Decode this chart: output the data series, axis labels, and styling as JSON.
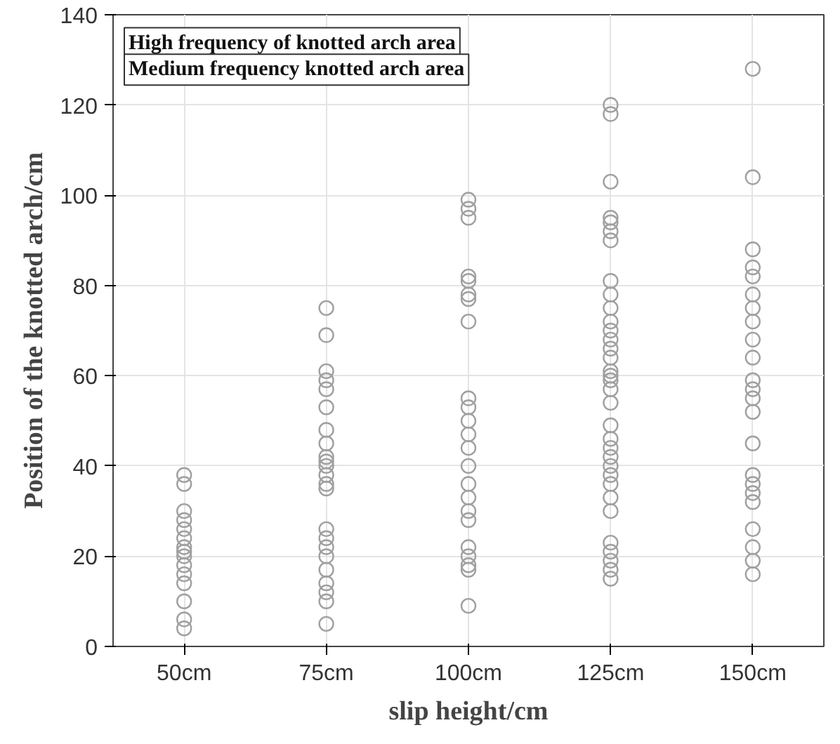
{
  "chart_data": {
    "type": "scatter",
    "xlabel": "slip height/cm",
    "ylabel": "Position of the knotted arch/cm",
    "categories": [
      "50cm",
      "75cm",
      "100cm",
      "125cm",
      "150cm"
    ],
    "ylim": [
      0,
      140
    ],
    "yticks": [
      0,
      20,
      40,
      60,
      80,
      100,
      120,
      140
    ],
    "grid": true,
    "marker": "circle",
    "annotations": [
      "High frequency of knotted arch area",
      "Medium frequency knotted arch area"
    ],
    "series": [
      {
        "color": "#a0a0a0",
        "values": [
          38,
          75,
          99,
          120,
          128
        ]
      },
      {
        "color": "#a0a0a0",
        "values": [
          36,
          69,
          97,
          118,
          104
        ]
      },
      {
        "color": "#a0a0a0",
        "values": [
          30,
          61,
          95,
          103,
          88
        ]
      },
      {
        "color": "#a0a0a0",
        "values": [
          28,
          59,
          82,
          95,
          84
        ]
      },
      {
        "color": "#a0a0a0",
        "values": [
          26,
          57,
          81,
          94,
          82
        ]
      },
      {
        "color": "#a0a0a0",
        "values": [
          24,
          53,
          78,
          92,
          78
        ]
      },
      {
        "color": "#a0a0a0",
        "values": [
          22,
          48,
          77,
          90,
          75
        ]
      },
      {
        "color": "#a0a0a0",
        "values": [
          21,
          45,
          72,
          81,
          72
        ]
      },
      {
        "color": "#a0a0a0",
        "values": [
          20,
          42,
          55,
          78,
          68
        ]
      },
      {
        "color": "#a0a0a0",
        "values": [
          18,
          41,
          53,
          75,
          64
        ]
      },
      {
        "color": "#a0a0a0",
        "values": [
          16,
          40,
          50,
          72,
          59
        ]
      },
      {
        "color": "#a0a0a0",
        "values": [
          14,
          38,
          47,
          70,
          57
        ]
      },
      {
        "color": "#a0a0a0",
        "values": [
          10,
          36,
          44,
          68,
          55
        ]
      },
      {
        "color": "#a0a0a0",
        "values": [
          6,
          35,
          40,
          66,
          52
        ]
      },
      {
        "color": "#a0a0a0",
        "values": [
          4,
          26,
          36,
          64,
          45
        ]
      },
      {
        "color": "#a0a0a0",
        "values": [
          null,
          24,
          33,
          61,
          38
        ]
      },
      {
        "color": "#a0a0a0",
        "values": [
          null,
          22,
          30,
          60,
          36
        ]
      },
      {
        "color": "#a0a0a0",
        "values": [
          null,
          20,
          28,
          59,
          34
        ]
      },
      {
        "color": "#a0a0a0",
        "values": [
          null,
          17,
          22,
          57,
          32
        ]
      },
      {
        "color": "#a0a0a0",
        "values": [
          null,
          14,
          20,
          54,
          26
        ]
      },
      {
        "color": "#a0a0a0",
        "values": [
          null,
          12,
          18,
          49,
          22
        ]
      },
      {
        "color": "#a0a0a0",
        "values": [
          null,
          10,
          17,
          46,
          19
        ]
      },
      {
        "color": "#a0a0a0",
        "values": [
          null,
          5,
          9,
          44,
          16
        ]
      },
      {
        "color": "#a0a0a0",
        "values": [
          null,
          null,
          null,
          42,
          null
        ]
      },
      {
        "color": "#a0a0a0",
        "values": [
          null,
          null,
          null,
          40,
          null
        ]
      },
      {
        "color": "#a0a0a0",
        "values": [
          null,
          null,
          null,
          38,
          null
        ]
      },
      {
        "color": "#a0a0a0",
        "values": [
          null,
          null,
          null,
          36,
          null
        ]
      },
      {
        "color": "#a0a0a0",
        "values": [
          null,
          null,
          null,
          33,
          null
        ]
      },
      {
        "color": "#a0a0a0",
        "values": [
          null,
          null,
          null,
          30,
          null
        ]
      },
      {
        "color": "#a0a0a0",
        "values": [
          null,
          null,
          null,
          23,
          null
        ]
      },
      {
        "color": "#a0a0a0",
        "values": [
          null,
          null,
          null,
          21,
          null
        ]
      },
      {
        "color": "#a0a0a0",
        "values": [
          null,
          null,
          null,
          19,
          null
        ]
      },
      {
        "color": "#a0a0a0",
        "values": [
          null,
          null,
          null,
          17,
          null
        ]
      },
      {
        "color": "#a0a0a0",
        "values": [
          null,
          null,
          null,
          15,
          null
        ]
      }
    ]
  }
}
